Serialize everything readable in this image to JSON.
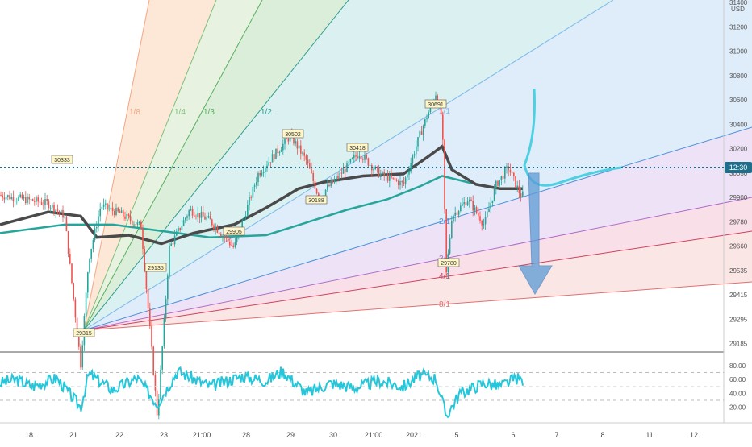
{
  "price_axis": {
    "currency": "USD",
    "ticks": [
      "31400",
      "31200",
      "31000",
      "30800",
      "30600",
      "30400",
      "30200",
      "30050",
      "29900",
      "29780",
      "29660",
      "29535",
      "29415",
      "29295",
      "29185"
    ],
    "current_badge": "12:30",
    "current_value": 30330
  },
  "rsi_axis": {
    "ticks": [
      "80.00",
      "60.00",
      "40.00",
      "20.00"
    ],
    "upper_band": 70,
    "lower_band": 30,
    "middle_band": 50
  },
  "time_axis": {
    "labels": [
      "18",
      "21",
      "22",
      "23",
      "21:00",
      "28",
      "29",
      "30",
      "21:00",
      "2021",
      "5",
      "6",
      "7",
      "8",
      "11",
      "12"
    ]
  },
  "colors": {
    "candle_up": "#26a69a",
    "candle_down": "#ef5350",
    "ma_slow": "#4a4a4a",
    "ma_fast": "#26a69a",
    "rsi": "#26c6da",
    "projection": "#4dd0e1",
    "arrow": "#5b9bd5",
    "current_price": "#1f6f8b"
  },
  "gann_fan": {
    "origin_label": "29315",
    "lines": [
      {
        "ratio": "1/8",
        "color": "#f4a582"
      },
      {
        "ratio": "1/4",
        "color": "#7fbf7b"
      },
      {
        "ratio": "1/3",
        "color": "#5aae61"
      },
      {
        "ratio": "1/2",
        "color": "#2b9b8b"
      },
      {
        "ratio": "1/1",
        "color": "#7db9e8"
      },
      {
        "ratio": "2/1",
        "color": "#4a90d9"
      },
      {
        "ratio": "3/1",
        "color": "#b06cc8"
      },
      {
        "ratio": "4/1",
        "color": "#d0405e"
      },
      {
        "ratio": "8/1",
        "color": "#e07070"
      }
    ]
  },
  "price_labels": [
    "30333",
    "29135",
    "29905",
    "30502",
    "30188",
    "30418",
    "30691",
    "29780"
  ],
  "chart_data": {
    "type": "candlestick",
    "symbol_quote": "USD",
    "series": [
      {
        "name": "price",
        "points": [
          [
            0,
            30200
          ],
          [
            30,
            30180
          ],
          [
            60,
            30160
          ],
          [
            80,
            30100
          ],
          [
            100,
            29400
          ],
          [
            110,
            29900
          ],
          [
            125,
            30150
          ],
          [
            150,
            30110
          ],
          [
            175,
            30050
          ],
          [
            195,
            29150
          ],
          [
            210,
            29950
          ],
          [
            235,
            30130
          ],
          [
            260,
            30080
          ],
          [
            290,
            29950
          ],
          [
            320,
            30300
          ],
          [
            360,
            30480
          ],
          [
            380,
            30360
          ],
          [
            395,
            30190
          ],
          [
            420,
            30290
          ],
          [
            445,
            30400
          ],
          [
            470,
            30300
          ],
          [
            500,
            30250
          ],
          [
            520,
            30480
          ],
          [
            540,
            30680
          ],
          [
            548,
            30560
          ],
          [
            553,
            29820
          ],
          [
            560,
            30100
          ],
          [
            580,
            30180
          ],
          [
            600,
            30060
          ],
          [
            615,
            30250
          ],
          [
            630,
            30330
          ],
          [
            645,
            30200
          ]
        ]
      },
      {
        "name": "ma_slow",
        "points": [
          [
            0,
            30060
          ],
          [
            60,
            30120
          ],
          [
            100,
            30100
          ],
          [
            120,
            30000
          ],
          [
            160,
            30010
          ],
          [
            200,
            29970
          ],
          [
            240,
            30020
          ],
          [
            290,
            30060
          ],
          [
            330,
            30140
          ],
          [
            370,
            30230
          ],
          [
            400,
            30260
          ],
          [
            450,
            30290
          ],
          [
            500,
            30300
          ],
          [
            530,
            30380
          ],
          [
            548,
            30430
          ],
          [
            560,
            30320
          ],
          [
            590,
            30250
          ],
          [
            620,
            30230
          ],
          [
            648,
            30230
          ]
        ]
      },
      {
        "name": "ma_fast",
        "points": [
          [
            0,
            30020
          ],
          [
            80,
            30060
          ],
          [
            140,
            30060
          ],
          [
            200,
            30030
          ],
          [
            260,
            30000
          ],
          [
            330,
            30010
          ],
          [
            380,
            30070
          ],
          [
            430,
            30130
          ],
          [
            480,
            30180
          ],
          [
            520,
            30240
          ],
          [
            548,
            30290
          ],
          [
            580,
            30260
          ],
          [
            620,
            30230
          ],
          [
            648,
            30230
          ]
        ]
      },
      {
        "name": "rsi",
        "points": [
          [
            0,
            55
          ],
          [
            20,
            60
          ],
          [
            40,
            50
          ],
          [
            70,
            62
          ],
          [
            100,
            20
          ],
          [
            110,
            68
          ],
          [
            140,
            45
          ],
          [
            170,
            62
          ],
          [
            195,
            25
          ],
          [
            220,
            72
          ],
          [
            260,
            50
          ],
          [
            300,
            65
          ],
          [
            330,
            58
          ],
          [
            350,
            72
          ],
          [
            380,
            40
          ],
          [
            410,
            55
          ],
          [
            440,
            48
          ],
          [
            470,
            58
          ],
          [
            500,
            50
          ],
          [
            520,
            66
          ],
          [
            540,
            62
          ],
          [
            553,
            8
          ],
          [
            570,
            40
          ],
          [
            600,
            55
          ],
          [
            620,
            50
          ],
          [
            640,
            62
          ],
          [
            648,
            58
          ]
        ]
      }
    ]
  }
}
